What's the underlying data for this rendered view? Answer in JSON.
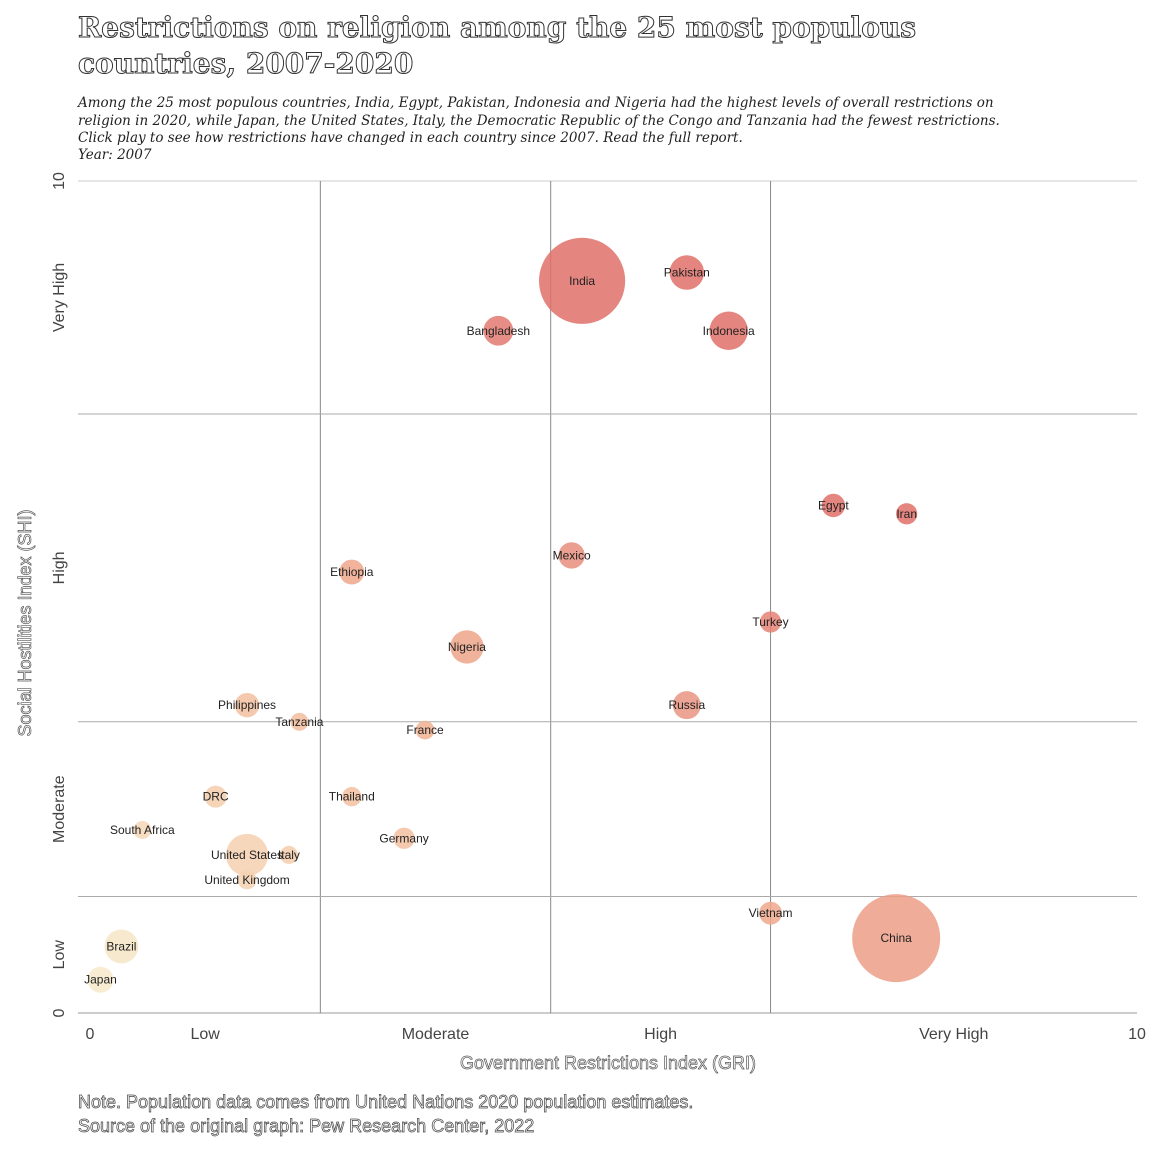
{
  "header": {
    "title": "Restrictions on religion among the 25 most populous countries, 2007-2020",
    "subtitle": "Among the 25 most populous countries, India, Egypt, Pakistan, Indonesia and Nigeria had the highest levels of overall restrictions on religion in 2020, while Japan, the United States, Italy, the Democratic Republic of the Congo and Tanzania had the fewest restrictions. Click play to see how restrictions have changed in each country since 2007. Read the full report.",
    "year_label": "Year: 2007"
  },
  "footer": {
    "note": "Note. Population data comes from United Nations 2020 population estimates.",
    "source": "Source of the original graph: Pew Research Center, 2022"
  },
  "chart_data": {
    "type": "scatter",
    "xlabel": "Government Restrictions Index (GRI)",
    "ylabel": "Social Hostilities Index (SHI)",
    "xlim": [
      0,
      10
    ],
    "ylim": [
      0,
      10
    ],
    "x_ticks": [
      {
        "label": "0",
        "value": 0
      },
      {
        "label": "10",
        "value": 10
      }
    ],
    "y_ticks": [
      {
        "label": "0",
        "value": 0
      },
      {
        "label": "10",
        "value": 10
      }
    ],
    "x_bands": [
      {
        "label": "Low",
        "from": 0,
        "to": 2.2
      },
      {
        "label": "Moderate",
        "from": 2.2,
        "to": 4.4
      },
      {
        "label": "High",
        "from": 4.4,
        "to": 6.5
      },
      {
        "label": "Very High",
        "from": 6.5,
        "to": 10
      }
    ],
    "y_bands": [
      {
        "label": "Low",
        "from": 0,
        "to": 1.4
      },
      {
        "label": "Moderate",
        "from": 1.4,
        "to": 3.5
      },
      {
        "label": "High",
        "from": 3.5,
        "to": 7.2
      },
      {
        "label": "Very High",
        "from": 7.2,
        "to": 10
      }
    ],
    "color_scale": {
      "low": "#f7efcf",
      "mid": "#f1b393",
      "high": "#e0706a"
    },
    "grid": true,
    "points": [
      {
        "name": "India",
        "x": 4.7,
        "y": 8.8,
        "population_m": 1380
      },
      {
        "name": "Pakistan",
        "x": 5.7,
        "y": 8.9,
        "population_m": 221
      },
      {
        "name": "Bangladesh",
        "x": 3.9,
        "y": 8.2,
        "population_m": 165
      },
      {
        "name": "Indonesia",
        "x": 6.1,
        "y": 8.2,
        "population_m": 274
      },
      {
        "name": "Egypt",
        "x": 7.1,
        "y": 6.1,
        "population_m": 102
      },
      {
        "name": "Iran",
        "x": 7.8,
        "y": 6.0,
        "population_m": 84
      },
      {
        "name": "Mexico",
        "x": 4.6,
        "y": 5.5,
        "population_m": 129
      },
      {
        "name": "Ethiopia",
        "x": 2.5,
        "y": 5.3,
        "population_m": 115
      },
      {
        "name": "Turkey",
        "x": 6.5,
        "y": 4.7,
        "population_m": 84
      },
      {
        "name": "Nigeria",
        "x": 3.6,
        "y": 4.4,
        "population_m": 206
      },
      {
        "name": "Russia",
        "x": 5.7,
        "y": 3.7,
        "population_m": 146
      },
      {
        "name": "Philippines",
        "x": 1.5,
        "y": 3.7,
        "population_m": 110
      },
      {
        "name": "Tanzania",
        "x": 2.0,
        "y": 3.5,
        "population_m": 60
      },
      {
        "name": "France",
        "x": 3.2,
        "y": 3.4,
        "population_m": 65
      },
      {
        "name": "DRC",
        "x": 1.2,
        "y": 2.6,
        "population_m": 90
      },
      {
        "name": "Thailand",
        "x": 2.5,
        "y": 2.6,
        "population_m": 70
      },
      {
        "name": "South Africa",
        "x": 0.5,
        "y": 2.2,
        "population_m": 59
      },
      {
        "name": "Germany",
        "x": 3.0,
        "y": 2.1,
        "population_m": 84
      },
      {
        "name": "United States",
        "x": 1.5,
        "y": 1.9,
        "population_m": 331
      },
      {
        "name": "Italy",
        "x": 1.9,
        "y": 1.9,
        "population_m": 60
      },
      {
        "name": "United Kingdom",
        "x": 1.5,
        "y": 1.6,
        "population_m": 67
      },
      {
        "name": "Vietnam",
        "x": 6.5,
        "y": 1.2,
        "population_m": 97
      },
      {
        "name": "China",
        "x": 7.7,
        "y": 0.9,
        "population_m": 1439
      },
      {
        "name": "Brazil",
        "x": 0.3,
        "y": 0.8,
        "population_m": 213
      },
      {
        "name": "Japan",
        "x": 0.1,
        "y": 0.4,
        "population_m": 126
      }
    ]
  }
}
